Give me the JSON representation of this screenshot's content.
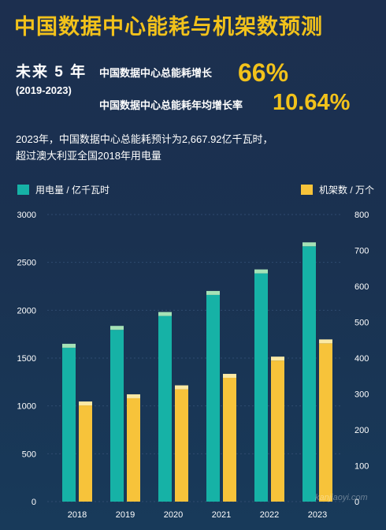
{
  "header": {
    "title": "中国数据中心能耗与机架数预测",
    "period_label": "未来 5 年",
    "period_range": "(2019-2023)"
  },
  "stats": [
    {
      "label": "中国数据中心总能耗增长",
      "value": "66%"
    },
    {
      "label": "中国数据中心总能耗年均增长率",
      "value": "10.64%"
    }
  ],
  "note": {
    "line1": "2023年，中国数据中心总能耗预计为2,667.92亿千瓦时，",
    "line2": "超过澳大利亚全国2018年用电量"
  },
  "legend": {
    "left": "用电量 / 亿千瓦时",
    "right": "机架数 / 万个"
  },
  "watermark": "kanjiaoyi.com",
  "colors": {
    "teal": "#16b2a6",
    "teal_top": "#a5e2b6",
    "yellow": "#f7c33a",
    "yellow_top": "#fbe9a4",
    "accent": "#f2c21b"
  },
  "chart_data": {
    "type": "bar",
    "categories": [
      "2018",
      "2019",
      "2020",
      "2021",
      "2022",
      "2023"
    ],
    "series": [
      {
        "name": "用电量 / 亿千瓦时",
        "axis": "left",
        "values": [
          1608,
          1795,
          1940,
          2160,
          2385,
          2668
        ]
      },
      {
        "name": "机架数 / 万个",
        "axis": "right",
        "values": [
          268,
          288,
          313,
          345,
          393,
          441
        ]
      }
    ],
    "y_left": {
      "min": 0,
      "max": 3000,
      "ticks": [
        0,
        500,
        1000,
        1500,
        2000,
        2500,
        3000
      ]
    },
    "y_right": {
      "min": 0,
      "max": 800,
      "ticks": [
        0,
        100,
        200,
        300,
        400,
        500,
        600,
        700,
        800
      ]
    },
    "grid": true
  }
}
